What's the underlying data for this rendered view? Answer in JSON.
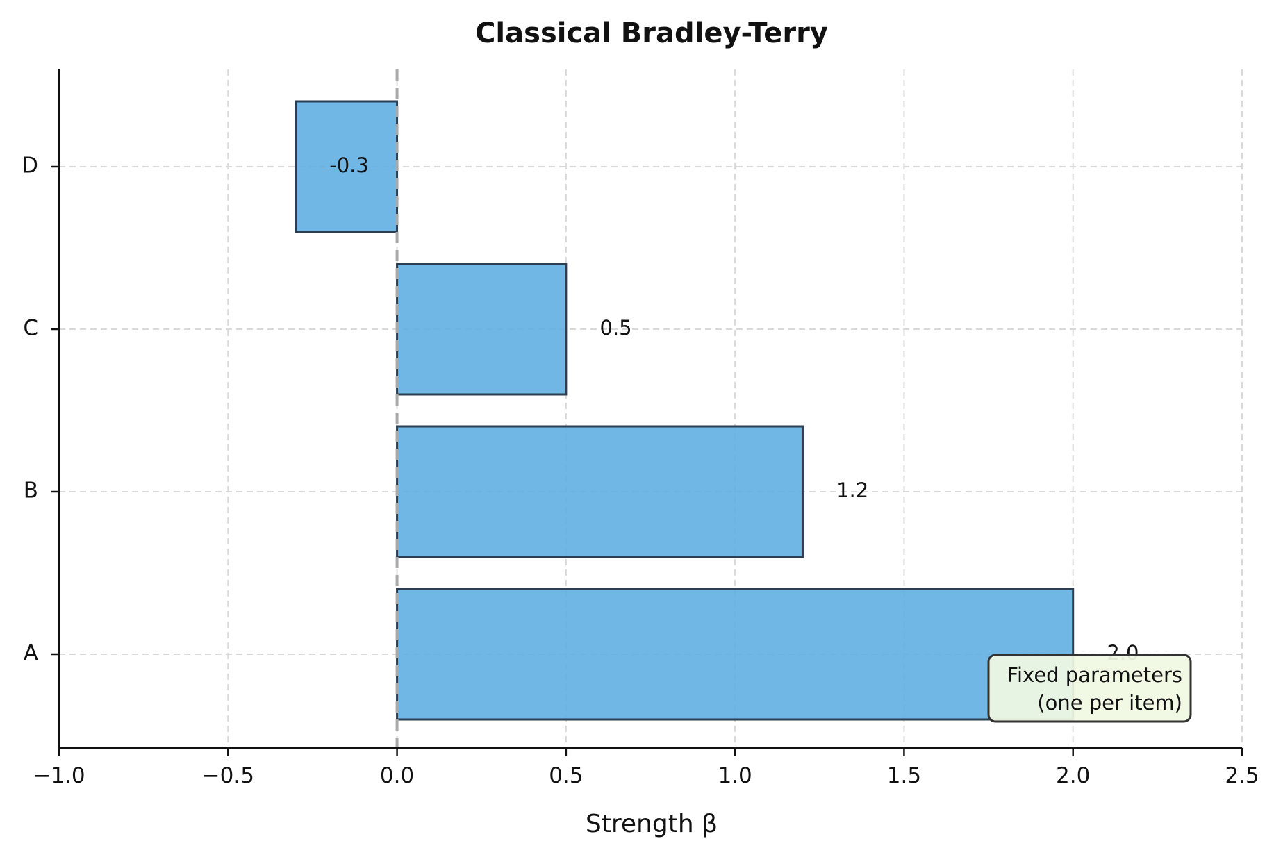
{
  "chart_data": {
    "type": "bar",
    "orientation": "horizontal",
    "title": "Classical Bradley-Terry",
    "xlabel": "Strength β",
    "ylabel": "",
    "categories": [
      "A",
      "B",
      "C",
      "D"
    ],
    "values": [
      2.0,
      1.2,
      0.5,
      -0.3
    ],
    "value_labels": [
      "2.0",
      "1.2",
      "0.5",
      "-0.3"
    ],
    "xlim": [
      -1.0,
      2.5
    ],
    "xticks": [
      -1.0,
      -0.5,
      0.0,
      0.5,
      1.0,
      1.5,
      2.0,
      2.5
    ],
    "xtick_labels": [
      "−1.0",
      "−0.5",
      "0.0",
      "0.5",
      "1.0",
      "1.5",
      "2.0",
      "2.5"
    ],
    "grid": true,
    "reference_line": 0.0,
    "annotation": {
      "lines": [
        "Fixed parameters",
        "(one per item)"
      ],
      "placement": "lower-right"
    },
    "colors": {
      "bar_fill": "#5DADE2",
      "bar_edge": "#2C3E50",
      "grid": "#d9d9d9",
      "reference_line": "#aaaaaa",
      "note_fill": "#f0f8e2",
      "note_edge": "#333333"
    }
  }
}
